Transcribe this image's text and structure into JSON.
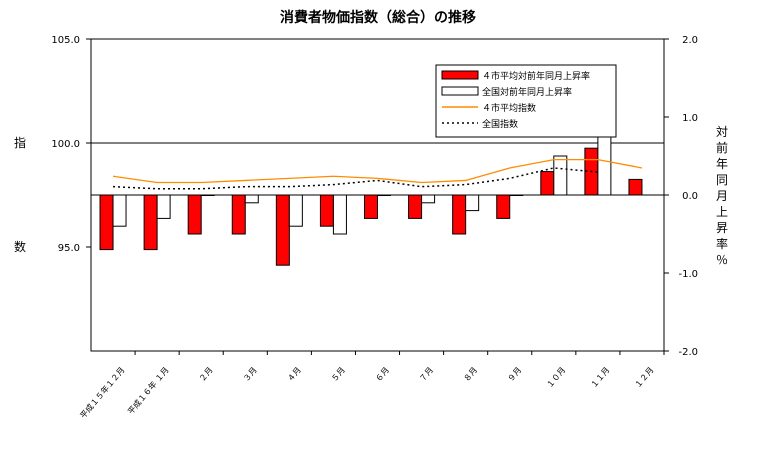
{
  "chart_data": {
    "type": "bar",
    "title": "消費者物価指数（総合）の推移",
    "left_axis": {
      "label": "指数",
      "ticks": [
        "105.0",
        "100.0",
        "95.0"
      ],
      "ylim": [
        90,
        105
      ]
    },
    "right_axis": {
      "label": "対前年同月上昇率％",
      "ticks": [
        "2.0",
        "1.0",
        "0.0",
        "-1.0",
        "-2.0"
      ],
      "ylim": [
        -2,
        2
      ]
    },
    "categories": [
      "平成１５年１２月",
      "平成１６年 １月",
      "２月",
      "３月",
      "４月",
      "５月",
      "６月",
      "７月",
      "８月",
      "９月",
      "１０月",
      "１１月",
      "１２月"
    ],
    "series": [
      {
        "name": "４市平均対前年同月上昇率",
        "type": "bar",
        "axis": "right",
        "color": "#ff0000",
        "values": [
          -0.7,
          -0.7,
          -0.5,
          -0.5,
          -0.9,
          -0.4,
          -0.3,
          -0.3,
          -0.5,
          -0.3,
          0.3,
          0.6,
          0.2
        ]
      },
      {
        "name": "全国対前年同月上昇率",
        "type": "bar",
        "axis": "right",
        "color": "#ffffff",
        "values": [
          -0.4,
          -0.3,
          0.0,
          -0.1,
          -0.4,
          -0.5,
          0.0,
          -0.1,
          -0.2,
          0.0,
          0.5,
          0.8,
          null
        ]
      },
      {
        "name": "４市平均指数",
        "type": "line",
        "axis": "left",
        "color": "#ff8c00",
        "values": [
          98.4,
          98.1,
          98.1,
          98.2,
          98.3,
          98.4,
          98.3,
          98.1,
          98.2,
          98.8,
          99.2,
          99.2,
          98.8
        ]
      },
      {
        "name": "全国指数",
        "type": "line",
        "axis": "left",
        "color": "#000000",
        "dash": true,
        "values": [
          97.9,
          97.8,
          97.8,
          97.9,
          97.9,
          98.0,
          98.2,
          97.9,
          98.0,
          98.3,
          98.8,
          98.6,
          null
        ]
      }
    ],
    "grid": false,
    "legend_position": "top-right"
  }
}
